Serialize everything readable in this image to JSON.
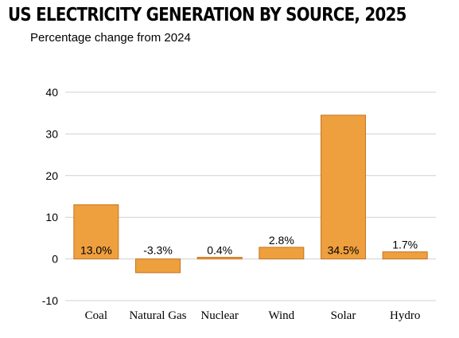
{
  "chart_data": {
    "type": "bar",
    "title": "US ELECTRICITY GENERATION BY SOURCE, 2025",
    "subtitle": "Percentage change from 2024",
    "xlabel": "",
    "ylabel": "",
    "categories": [
      "Coal",
      "Natural Gas",
      "Nuclear",
      "Wind",
      "Solar",
      "Hydro"
    ],
    "values": [
      13.0,
      -3.3,
      0.4,
      2.8,
      34.5,
      1.7
    ],
    "data_labels": [
      "13.0%",
      "-3.3%",
      "0.4%",
      "2.8%",
      "34.5%",
      "1.7%"
    ],
    "ylim": [
      -10,
      40
    ],
    "yticks": [
      -10,
      0,
      10,
      20,
      30,
      40
    ],
    "grid": true,
    "legend": "none",
    "bar_color": "#EE9F3E",
    "bar_edge_color": "#C7741F",
    "grid_color": "#D0D0D0"
  }
}
